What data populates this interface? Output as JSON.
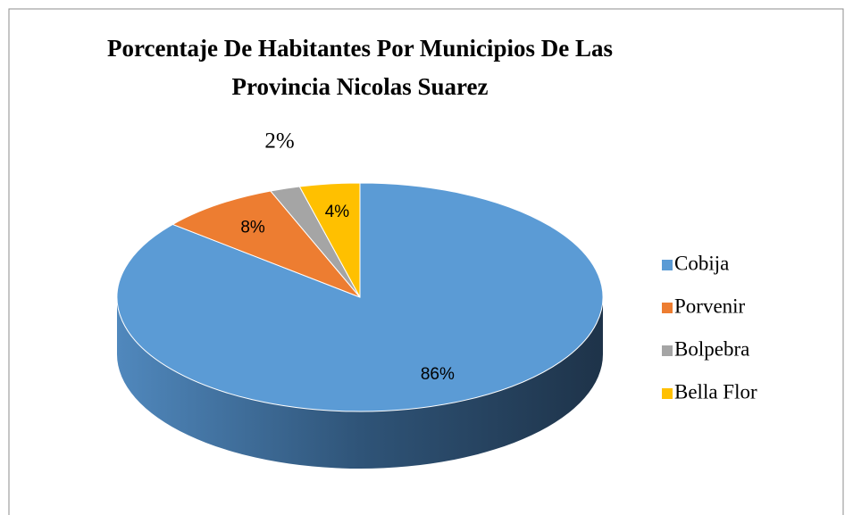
{
  "chart_data": {
    "type": "pie3d",
    "title": "Porcentaje De Habitantes Por Municipios De Las Provincia Nicolas Suarez",
    "categories": [
      "Cobija",
      "Porvenir",
      "Bolpebra",
      "Bella Flor"
    ],
    "values": [
      86,
      8,
      2,
      4
    ],
    "value_labels": [
      "86%",
      "8%",
      "2%",
      "4%"
    ],
    "colors": [
      "#5b9bd5",
      "#ed7d31",
      "#a5a5a5",
      "#ffc000"
    ],
    "legend": "right"
  }
}
